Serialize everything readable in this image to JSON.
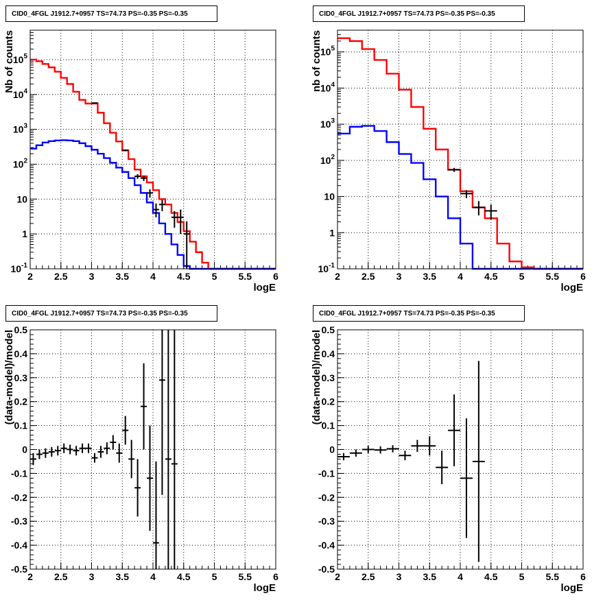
{
  "chart_data": [
    {
      "type": "line",
      "title": "CID0_4FGL J1912.7+0957 TS=74.73 PS=-0.35 PS=-0.35",
      "xlabel": "logE",
      "ylabel": "Nb of counts",
      "xlim": [
        2,
        6
      ],
      "ylim": [
        0.1,
        700000
      ],
      "yscale": "log",
      "grid": true,
      "x_ticks": [
        "2",
        "2.5",
        "3",
        "3.5",
        "4",
        "4.5",
        "5",
        "5.5",
        "6"
      ],
      "y_ticks": [
        "10^-1",
        "1",
        "10",
        "10^2",
        "10^3",
        "10^4",
        "10^5"
      ],
      "bin_edges": [
        2.0,
        2.1,
        2.2,
        2.3,
        2.4,
        2.5,
        2.6,
        2.7,
        2.8,
        2.9,
        3.0,
        3.1,
        3.2,
        3.3,
        3.4,
        3.5,
        3.6,
        3.7,
        3.8,
        3.9,
        4.0,
        4.1,
        4.2,
        4.3,
        4.4,
        4.5,
        4.6,
        4.7,
        4.8,
        4.9,
        5.0,
        5.1,
        5.2,
        5.3,
        5.4,
        5.5,
        5.6,
        5.7,
        5.8,
        5.9,
        6.0
      ],
      "series": [
        {
          "color": "#ff0000",
          "values": [
            100000,
            90000,
            75000,
            60000,
            45000,
            30000,
            20000,
            12000,
            7000,
            5500,
            5500,
            3000,
            1500,
            800,
            450,
            250,
            140,
            70,
            45,
            30,
            18,
            10,
            7,
            4,
            2.2,
            1.2,
            0.6,
            0.3,
            0.15,
            0.1,
            0.1,
            0.1,
            0.1,
            0.1,
            0.1,
            0.1,
            0.1,
            0.1,
            0.1,
            0.1
          ]
        },
        {
          "color": "#0000ff",
          "values": [
            280,
            350,
            420,
            460,
            480,
            490,
            480,
            460,
            400,
            330,
            260,
            200,
            150,
            110,
            80,
            60,
            40,
            25,
            15,
            8,
            4,
            2,
            1,
            0.5,
            0.25,
            0.12,
            0.1,
            0.1,
            0.1,
            0.1,
            0.1,
            0.1,
            0.1,
            0.1,
            0.1,
            0.1,
            0.1,
            0.1,
            0.1,
            0.1
          ]
        }
      ],
      "data_points": [
        {
          "x": 3.05,
          "y": 5700,
          "xerr": 0.05,
          "ylo": 5600,
          "yhi": 5800
        },
        {
          "x": 3.55,
          "y": 250,
          "xerr": 0.05,
          "ylo": 235,
          "yhi": 265
        },
        {
          "x": 3.75,
          "y": 45,
          "xerr": 0.05,
          "ylo": 38,
          "yhi": 52
        },
        {
          "x": 3.85,
          "y": 40,
          "xerr": 0.05,
          "ylo": 33,
          "yhi": 47
        },
        {
          "x": 3.95,
          "y": 15,
          "xerr": 0.05,
          "ylo": 11,
          "yhi": 19
        },
        {
          "x": 4.05,
          "y": 5,
          "xerr": 0.05,
          "ylo": 3,
          "yhi": 7.5
        },
        {
          "x": 4.15,
          "y": 7,
          "xerr": 0.05,
          "ylo": 4.5,
          "yhi": 9.5
        },
        {
          "x": 4.35,
          "y": 3,
          "xerr": 0.05,
          "ylo": 1.5,
          "yhi": 4.5
        },
        {
          "x": 4.45,
          "y": 3,
          "xerr": 0.05,
          "ylo": 1,
          "yhi": 5
        },
        {
          "x": 4.55,
          "y": 1,
          "xerr": 0.05,
          "ylo": 0.1,
          "yhi": 2.3
        }
      ]
    },
    {
      "type": "line",
      "title": "CID0_4FGL J1912.7+0957 TS=74.73 PS=-0.35 PS=-0.35",
      "xlabel": "logE",
      "ylabel": "nb of counts",
      "xlim": [
        2,
        6
      ],
      "ylim": [
        0.1,
        400000
      ],
      "yscale": "log",
      "grid": true,
      "x_ticks": [
        "2",
        "2.5",
        "3",
        "3.5",
        "4",
        "4.5",
        "5",
        "5.5",
        "6"
      ],
      "y_ticks": [
        "10^-1",
        "1",
        "10",
        "10^2",
        "10^3",
        "10^4",
        "10^5"
      ],
      "bin_edges": [
        2.0,
        2.2,
        2.4,
        2.6,
        2.8,
        3.0,
        3.2,
        3.4,
        3.6,
        3.8,
        4.0,
        4.2,
        4.4,
        4.6,
        4.8,
        5.0,
        5.2,
        5.4,
        5.6,
        5.8,
        6.0
      ],
      "series": [
        {
          "color": "#ff0000",
          "values": [
            240000,
            200000,
            120000,
            60000,
            25000,
            9000,
            3000,
            750,
            200,
            55,
            14,
            5,
            2.5,
            0.5,
            0.16,
            0.11,
            0.1,
            0.1,
            0.1,
            0.1
          ]
        },
        {
          "color": "#0000ff",
          "values": [
            550,
            850,
            900,
            650,
            320,
            150,
            85,
            30,
            10,
            2.5,
            0.5,
            0.1,
            0.1,
            0.1,
            0.1,
            0.1,
            0.1,
            0.1,
            0.1,
            0.1
          ]
        }
      ],
      "data_points": [
        {
          "x": 3.9,
          "y": 55,
          "xerr": 0.1,
          "ylo": 48,
          "yhi": 62
        },
        {
          "x": 4.1,
          "y": 12,
          "xerr": 0.1,
          "ylo": 9,
          "yhi": 15
        },
        {
          "x": 4.3,
          "y": 5,
          "xerr": 0.1,
          "ylo": 3,
          "yhi": 7.5
        },
        {
          "x": 4.5,
          "y": 4,
          "xerr": 0.1,
          "ylo": 2.3,
          "yhi": 6
        }
      ]
    },
    {
      "type": "scatter",
      "title": "CID0_4FGL J1912.7+0957 TS=74.73 PS=-0.35 PS=-0.35",
      "xlabel": "logE",
      "ylabel": "(data-model)/model",
      "xlim": [
        2,
        6
      ],
      "ylim": [
        -0.5,
        0.5
      ],
      "grid": true,
      "x_ticks": [
        "2",
        "2.5",
        "3",
        "3.5",
        "4",
        "4.5",
        "5",
        "5.5",
        "6"
      ],
      "y_ticks": [
        "-0.5",
        "-0.4",
        "-0.3",
        "-0.2",
        "-0.1",
        "0",
        "0.1",
        "0.2",
        "0.3",
        "0.4",
        "0.5"
      ],
      "points": [
        {
          "x": 2.05,
          "y": -0.04,
          "xerr": 0.05,
          "yerr": 0.025
        },
        {
          "x": 2.15,
          "y": -0.02,
          "xerr": 0.05,
          "yerr": 0.02
        },
        {
          "x": 2.25,
          "y": -0.015,
          "xerr": 0.05,
          "yerr": 0.02
        },
        {
          "x": 2.35,
          "y": -0.01,
          "xerr": 0.05,
          "yerr": 0.02
        },
        {
          "x": 2.45,
          "y": -0.005,
          "xerr": 0.05,
          "yerr": 0.02
        },
        {
          "x": 2.55,
          "y": 0.005,
          "xerr": 0.05,
          "yerr": 0.02
        },
        {
          "x": 2.65,
          "y": 0.0,
          "xerr": 0.05,
          "yerr": 0.02
        },
        {
          "x": 2.75,
          "y": -0.005,
          "xerr": 0.05,
          "yerr": 0.02
        },
        {
          "x": 2.85,
          "y": 0.005,
          "xerr": 0.05,
          "yerr": 0.02
        },
        {
          "x": 2.95,
          "y": 0.005,
          "xerr": 0.05,
          "yerr": 0.02
        },
        {
          "x": 3.05,
          "y": -0.035,
          "xerr": 0.05,
          "yerr": 0.02
        },
        {
          "x": 3.15,
          "y": -0.01,
          "xerr": 0.05,
          "yerr": 0.025
        },
        {
          "x": 3.25,
          "y": 0.005,
          "xerr": 0.05,
          "yerr": 0.025
        },
        {
          "x": 3.35,
          "y": 0.03,
          "xerr": 0.05,
          "yerr": 0.03
        },
        {
          "x": 3.45,
          "y": -0.015,
          "xerr": 0.05,
          "yerr": 0.04
        },
        {
          "x": 3.55,
          "y": 0.08,
          "xerr": 0.05,
          "yerr": 0.06
        },
        {
          "x": 3.65,
          "y": -0.04,
          "xerr": 0.05,
          "yerr": 0.08
        },
        {
          "x": 3.75,
          "y": -0.16,
          "xerr": 0.05,
          "yerr": 0.12
        },
        {
          "x": 3.85,
          "y": 0.18,
          "xerr": 0.05,
          "yerr": 0.18
        },
        {
          "x": 3.95,
          "y": -0.12,
          "xerr": 0.05,
          "yerr": 0.22
        },
        {
          "x": 4.05,
          "y": -0.39,
          "xerr": 0.05,
          "yerr": 0.34
        },
        {
          "x": 4.15,
          "y": 0.29,
          "xerr": 0.05,
          "yerr": 0.48
        },
        {
          "x": 4.25,
          "y": -0.04,
          "xerr": 0.05,
          "yerr": 0.8
        },
        {
          "x": 4.35,
          "y": -0.06,
          "xerr": 0.05,
          "yerr": 1.0
        }
      ]
    },
    {
      "type": "scatter",
      "title": "CID0_4FGL J1912.7+0957 TS=74.73 PS=-0.35 PS=-0.35",
      "xlabel": "logE",
      "ylabel": "(data-model)/model",
      "xlim": [
        2,
        6
      ],
      "ylim": [
        -0.5,
        0.5
      ],
      "grid": true,
      "x_ticks": [
        "2",
        "2.5",
        "3",
        "3.5",
        "4",
        "4.5",
        "5",
        "5.5",
        "6"
      ],
      "y_ticks": [
        "-0.5",
        "-0.4",
        "-0.3",
        "-0.2",
        "-0.1",
        "0",
        "0.1",
        "0.2",
        "0.3",
        "0.4",
        "0.5"
      ],
      "points": [
        {
          "x": 2.1,
          "y": -0.03,
          "xerr": 0.1,
          "yerr": 0.015
        },
        {
          "x": 2.3,
          "y": -0.015,
          "xerr": 0.1,
          "yerr": 0.015
        },
        {
          "x": 2.5,
          "y": 0.0,
          "xerr": 0.1,
          "yerr": 0.015
        },
        {
          "x": 2.7,
          "y": -0.002,
          "xerr": 0.1,
          "yerr": 0.015
        },
        {
          "x": 2.9,
          "y": 0.003,
          "xerr": 0.1,
          "yerr": 0.015
        },
        {
          "x": 3.1,
          "y": -0.025,
          "xerr": 0.1,
          "yerr": 0.02
        },
        {
          "x": 3.3,
          "y": 0.015,
          "xerr": 0.1,
          "yerr": 0.025
        },
        {
          "x": 3.5,
          "y": 0.015,
          "xerr": 0.1,
          "yerr": 0.04
        },
        {
          "x": 3.7,
          "y": -0.075,
          "xerr": 0.1,
          "yerr": 0.07
        },
        {
          "x": 3.9,
          "y": 0.08,
          "xerr": 0.1,
          "yerr": 0.15
        },
        {
          "x": 4.1,
          "y": -0.12,
          "xerr": 0.1,
          "yerr": 0.25
        },
        {
          "x": 4.3,
          "y": -0.05,
          "xerr": 0.1,
          "yerr": 0.42
        }
      ]
    }
  ]
}
